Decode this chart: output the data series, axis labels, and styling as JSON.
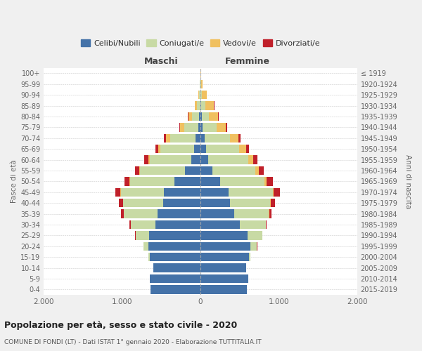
{
  "age_groups": [
    "0-4",
    "5-9",
    "10-14",
    "15-19",
    "20-24",
    "25-29",
    "30-34",
    "35-39",
    "40-44",
    "45-49",
    "50-54",
    "55-59",
    "60-64",
    "65-69",
    "70-74",
    "75-79",
    "80-84",
    "85-89",
    "90-94",
    "95-99",
    "100+"
  ],
  "birth_years": [
    "2015-2019",
    "2010-2014",
    "2005-2009",
    "2000-2004",
    "1995-1999",
    "1990-1994",
    "1985-1989",
    "1980-1984",
    "1975-1979",
    "1970-1974",
    "1965-1969",
    "1960-1964",
    "1955-1959",
    "1950-1954",
    "1945-1949",
    "1940-1944",
    "1935-1939",
    "1930-1934",
    "1925-1929",
    "1920-1924",
    "≤ 1919"
  ],
  "maschi_celibi": [
    640,
    650,
    600,
    650,
    670,
    660,
    580,
    550,
    480,
    470,
    330,
    200,
    120,
    80,
    60,
    25,
    15,
    5,
    3,
    2,
    0
  ],
  "maschi_coniugati": [
    0,
    1,
    3,
    15,
    60,
    170,
    310,
    430,
    510,
    550,
    570,
    570,
    530,
    430,
    330,
    180,
    95,
    45,
    15,
    5,
    1
  ],
  "maschi_vedovi": [
    0,
    0,
    0,
    0,
    0,
    0,
    0,
    1,
    2,
    5,
    8,
    10,
    20,
    30,
    50,
    55,
    45,
    25,
    8,
    3,
    0
  ],
  "maschi_divorziati": [
    0,
    0,
    0,
    0,
    2,
    5,
    20,
    35,
    50,
    65,
    60,
    55,
    50,
    35,
    30,
    10,
    5,
    2,
    0,
    0,
    0
  ],
  "femmine_nubili": [
    590,
    610,
    580,
    620,
    640,
    600,
    500,
    430,
    380,
    360,
    250,
    155,
    100,
    75,
    55,
    30,
    18,
    8,
    3,
    2,
    1
  ],
  "femmine_coniugate": [
    1,
    2,
    5,
    20,
    80,
    185,
    330,
    440,
    510,
    560,
    570,
    545,
    510,
    420,
    320,
    175,
    90,
    50,
    18,
    5,
    0
  ],
  "femmine_vedove": [
    0,
    0,
    0,
    0,
    0,
    1,
    2,
    5,
    8,
    15,
    25,
    40,
    60,
    85,
    110,
    120,
    120,
    115,
    60,
    15,
    3
  ],
  "femmine_divorziate": [
    0,
    0,
    0,
    0,
    2,
    5,
    15,
    30,
    50,
    80,
    75,
    70,
    60,
    40,
    30,
    15,
    8,
    3,
    2,
    0,
    0
  ],
  "color_celibi": "#4472a8",
  "color_coniugati": "#c8daa4",
  "color_vedovi": "#f0c060",
  "color_divorziati": "#c0202a",
  "title": "Popolazione per età, sesso e stato civile - 2020",
  "subtitle": "COMUNE DI FONDI (LT) - Dati ISTAT 1° gennaio 2020 - Elaborazione TUTTITALIA.IT",
  "label_maschi": "Maschi",
  "label_femmine": "Femmine",
  "label_fasce": "Fasce di età",
  "label_anni": "Anni di nascita",
  "legend_labels": [
    "Celibi/Nubili",
    "Coniugati/e",
    "Vedovi/e",
    "Divorziati/e"
  ],
  "xlim": 2000,
  "bg_color": "#f0f0f0",
  "plot_bg": "#ffffff"
}
